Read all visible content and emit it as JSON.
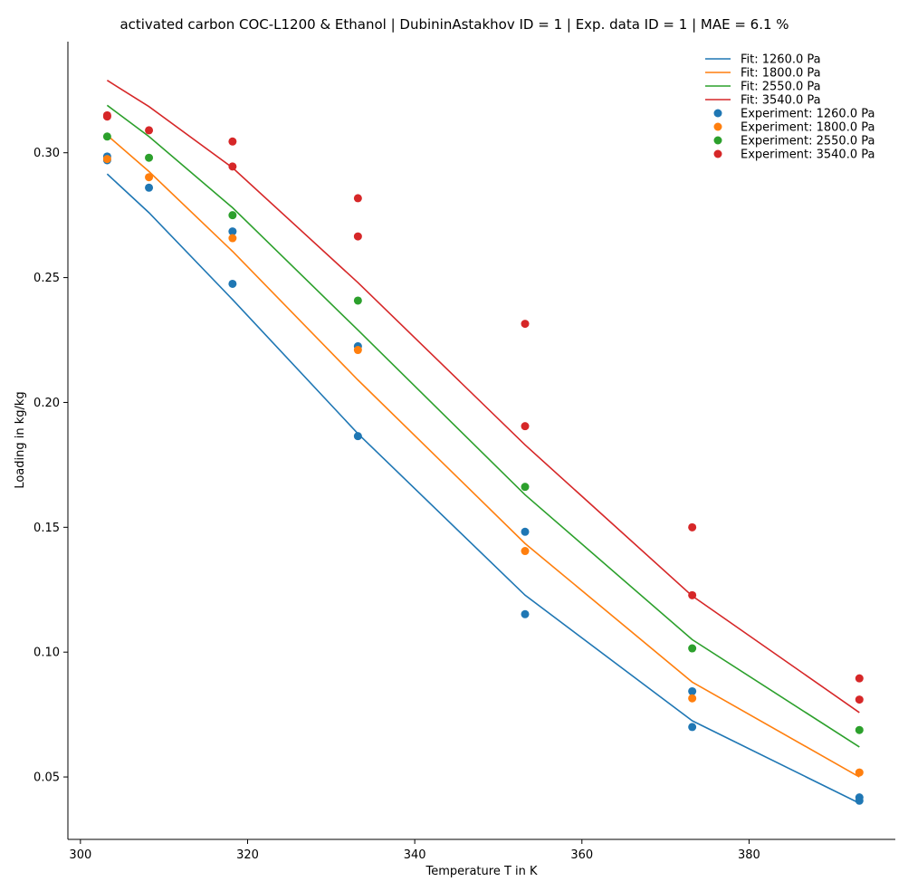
{
  "chart_data": {
    "type": "scatter",
    "title": "activated carbon COC-L1200 & Ethanol | DubininAstakhov ID = 1 | Exp. data ID = 1 | MAE = 6.1 %",
    "xlabel": "Temperature T in K",
    "ylabel": "Loading in kg/kg",
    "xlim": [
      298.5,
      397.5
    ],
    "ylim": [
      0.025,
      0.3445
    ],
    "xticks": [
      300,
      320,
      340,
      360,
      380
    ],
    "xtick_labels": [
      "300",
      "320",
      "340",
      "360",
      "380"
    ],
    "yticks": [
      0.05,
      0.1,
      0.15,
      0.2,
      0.25,
      0.3
    ],
    "ytick_labels": [
      "0.05",
      "0.10",
      "0.15",
      "0.20",
      "0.25",
      "0.30"
    ],
    "grid": false,
    "legend_position": "top-right",
    "colors": {
      "p1260": "#1f77b4",
      "p1800": "#ff7f0e",
      "p2550": "#2ca02c",
      "p3540": "#d62728"
    },
    "fit_series": [
      {
        "name": "Fit: 1260.0 Pa",
        "color": "#1f77b4",
        "x": [
          303.2,
          308.2,
          318.2,
          333.2,
          353.2,
          373.2,
          393.2
        ],
        "y": [
          0.2915,
          0.276,
          0.2412,
          0.1875,
          0.1228,
          0.0725,
          0.0395
        ]
      },
      {
        "name": "Fit: 1800.0 Pa",
        "color": "#ff7f0e",
        "x": [
          303.2,
          308.2,
          318.2,
          333.2,
          353.2,
          373.2,
          393.2
        ],
        "y": [
          0.307,
          0.2925,
          0.2605,
          0.209,
          0.1435,
          0.088,
          0.05
        ]
      },
      {
        "name": "Fit: 2550.0 Pa",
        "color": "#2ca02c",
        "x": [
          303.2,
          308.2,
          318.2,
          333.2,
          353.2,
          373.2,
          393.2
        ],
        "y": [
          0.319,
          0.3065,
          0.278,
          0.229,
          0.163,
          0.105,
          0.062
        ]
      },
      {
        "name": "Fit: 3540.0 Pa",
        "color": "#d62728",
        "x": [
          303.2,
          308.2,
          318.2,
          333.2,
          353.2,
          373.2,
          393.2
        ],
        "y": [
          0.329,
          0.3185,
          0.294,
          0.248,
          0.183,
          0.1225,
          0.0758
        ]
      }
    ],
    "experiment_series": [
      {
        "name": "Experiment: 1260.0 Pa",
        "color": "#1f77b4",
        "x": [
          303.2,
          303.2,
          308.2,
          318.2,
          318.2,
          333.2,
          333.2,
          353.2,
          353.2,
          373.2,
          373.2,
          393.2,
          393.2
        ],
        "y": [
          0.2985,
          0.297,
          0.286,
          0.2685,
          0.2475,
          0.2225,
          0.1865,
          0.1482,
          0.1152,
          0.0843,
          0.07,
          0.0418,
          0.0405
        ]
      },
      {
        "name": "Experiment: 1800.0 Pa",
        "color": "#ff7f0e",
        "x": [
          303.2,
          308.2,
          318.2,
          333.2,
          353.2,
          373.2,
          393.2
        ],
        "y": [
          0.2975,
          0.2902,
          0.2658,
          0.221,
          0.1405,
          0.0815,
          0.0518
        ]
      },
      {
        "name": "Experiment: 2550.0 Pa",
        "color": "#2ca02c",
        "x": [
          303.2,
          308.2,
          318.2,
          333.2,
          353.2,
          373.2,
          393.2
        ],
        "y": [
          0.3065,
          0.298,
          0.275,
          0.2408,
          0.1662,
          0.1015,
          0.0688
        ]
      },
      {
        "name": "Experiment: 3540.0 Pa",
        "color": "#d62728",
        "x": [
          303.2,
          303.2,
          308.2,
          318.2,
          318.2,
          333.2,
          333.2,
          353.2,
          353.2,
          373.2,
          373.2,
          393.2,
          393.2
        ],
        "y": [
          0.315,
          0.3145,
          0.309,
          0.3045,
          0.2945,
          0.2818,
          0.2665,
          0.2315,
          0.1905,
          0.15,
          0.1228,
          0.0895,
          0.081
        ]
      }
    ]
  }
}
